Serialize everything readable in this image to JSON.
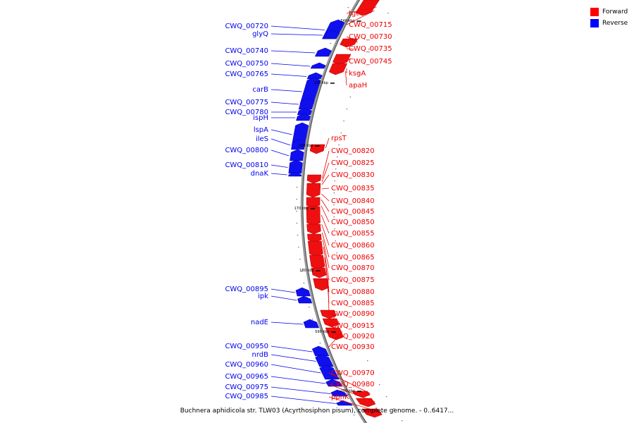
{
  "legend": {
    "forward_label": "Forward",
    "reverse_label": "Reverse",
    "forward_color": "#ff0000",
    "reverse_color": "#0000ff"
  },
  "caption": "Buchnera aphidicola str. TLW03 (Acyrthosiphon pisum), complete genome. - 0..6417...",
  "ticks": [
    "140 kbp",
    "150 kbp",
    "160 kbp",
    "170 kbp",
    "180 kbp",
    "190 kbp",
    "200 kbp"
  ],
  "reverse_labels": [
    "CWQ_00720",
    "glyQ",
    "CWQ_00740",
    "CWQ_00750",
    "CWQ_00765",
    "carB",
    "CWQ_00775",
    "CWQ_00780",
    "ispH",
    "lspA",
    "ileS",
    "CWQ_00800",
    "CWQ_00810",
    "dnaK",
    "CWQ_00895",
    "ipk",
    "nadE",
    "CWQ_00950",
    "nrdB",
    "CWQ_00960",
    "CWQ_00965",
    "CWQ_00975",
    "CWQ_00985"
  ],
  "forward_labels": [
    "tgt",
    "CWQ_00715",
    "CWQ_00730",
    "CWQ_00735",
    "CWQ_00745",
    "ksgA",
    "apaH",
    "rpsT",
    "CWQ_00820",
    "CWQ_00825",
    "CWQ_00830",
    "CWQ_00835",
    "CWQ_00840",
    "CWQ_00845",
    "CWQ_00850",
    "CWQ_00855",
    "CWQ_00860",
    "CWQ_00865",
    "CWQ_00870",
    "CWQ_00875",
    "CWQ_00880",
    "CWQ_00885",
    "CWQ_00890",
    "CWQ_00915",
    "CWQ_00920",
    "CWQ_00930",
    "CWQ_00970",
    "CWQ_00980",
    "ppnK"
  ]
}
